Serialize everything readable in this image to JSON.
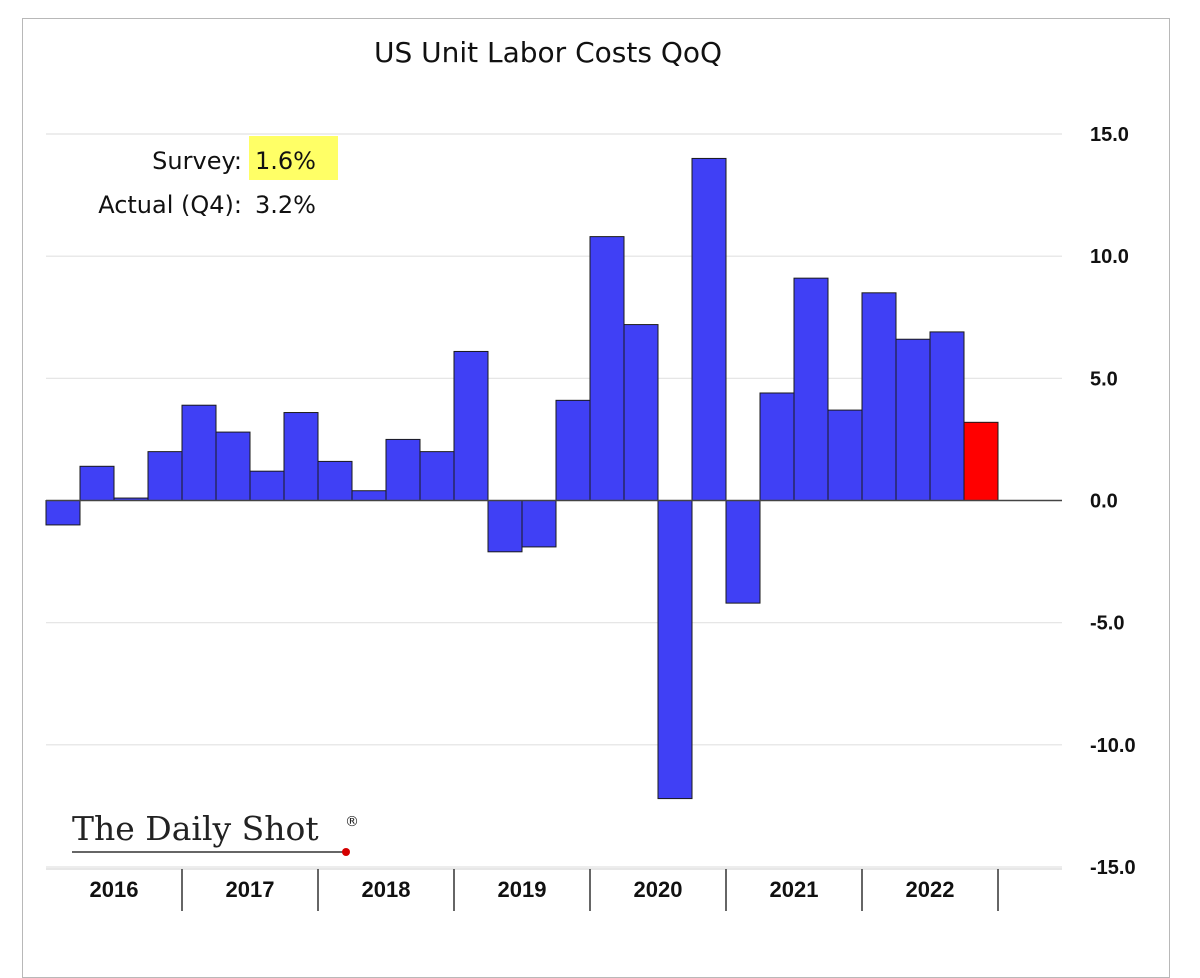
{
  "chart_data": {
    "type": "bar",
    "title": "US Unit Labor Costs QoQ",
    "xlabel": "",
    "ylabel": "",
    "ylim": [
      -15,
      15
    ],
    "y_ticks": [
      "15.0",
      "10.0",
      "5.0",
      "0.0",
      "-5.0",
      "-10.0",
      "-15.0"
    ],
    "y_tick_values": [
      15,
      10,
      5,
      0,
      -5,
      -10,
      -15
    ],
    "y_axis_position": "right",
    "grid": true,
    "year_labels": [
      "2016",
      "2017",
      "2018",
      "2019",
      "2020",
      "2021",
      "2022"
    ],
    "bars_per_year": 4,
    "values": [
      -1.0,
      1.4,
      0.1,
      2.0,
      3.9,
      2.8,
      1.2,
      3.6,
      1.6,
      0.4,
      2.5,
      2.0,
      6.1,
      -2.1,
      -1.9,
      4.1,
      10.8,
      7.2,
      -12.2,
      14.0,
      -4.2,
      4.4,
      9.1,
      3.7,
      8.5,
      6.6,
      6.9,
      3.2
    ],
    "colors": {
      "bar": "#4040f5",
      "highlight": "#ff0000",
      "highlight_index": 27,
      "survey_highlight": "#ffff66"
    },
    "annotations": {
      "survey_label": "Survey:",
      "survey_value": "1.6%",
      "actual_label": "Actual (Q4):",
      "actual_value": "3.2%"
    },
    "watermark": "The Daily Shot"
  }
}
